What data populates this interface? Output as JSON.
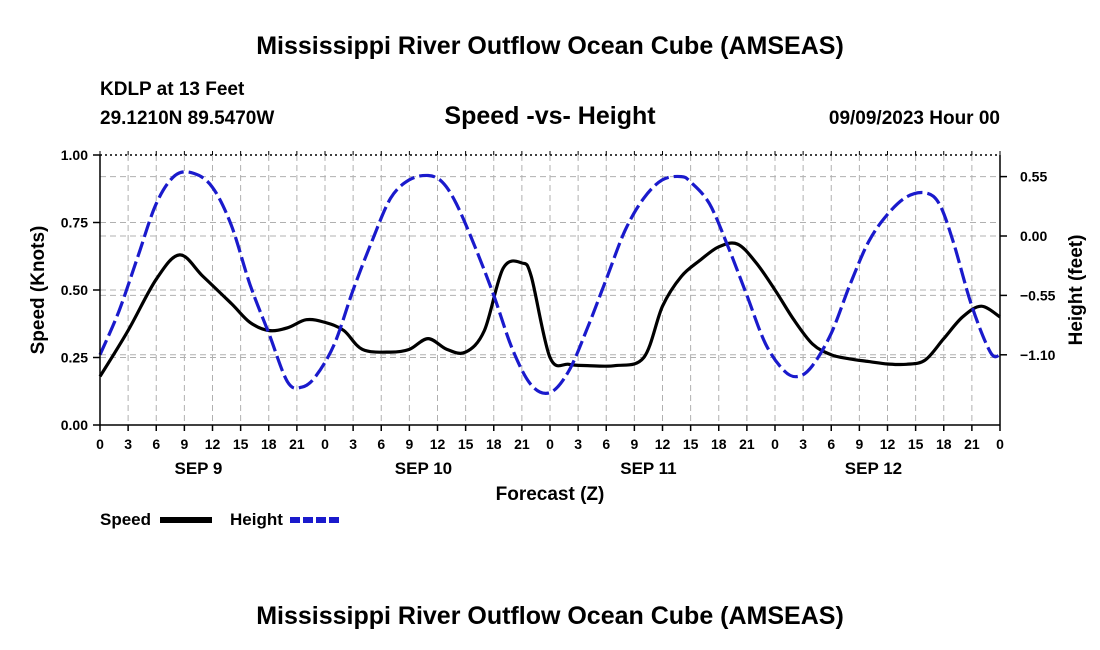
{
  "page": {
    "title": "Mississippi River Outflow Ocean Cube (AMSEAS)",
    "footer_title": "Mississippi River Outflow Ocean Cube (AMSEAS)",
    "station": "KDLP at 13 Feet",
    "coords": "29.1210N  89.5470W",
    "chart_title": "Speed -vs- Height",
    "datetime": "09/09/2023 Hour 00"
  },
  "chart_data": {
    "type": "line",
    "title": "Speed -vs- Height",
    "xlabel": "Forecast (Z)",
    "ylabel_left": "Speed (Knots)",
    "ylabel_right": "Height (feet)",
    "x_hours_range": [
      0,
      96
    ],
    "x_tick_labels": [
      "0",
      "3",
      "6",
      "9",
      "12",
      "15",
      "18",
      "21",
      "0",
      "3",
      "6",
      "9",
      "12",
      "15",
      "18",
      "21",
      "0",
      "3",
      "6",
      "9",
      "12",
      "15",
      "18",
      "21",
      "0",
      "3",
      "6",
      "9",
      "12",
      "15",
      "18",
      "21",
      "0"
    ],
    "day_labels": [
      {
        "label": "SEP 9",
        "hour": 10.5
      },
      {
        "label": "SEP 10",
        "hour": 34.5
      },
      {
        "label": "SEP 11",
        "hour": 58.5
      },
      {
        "label": "SEP 12",
        "hour": 82.5
      }
    ],
    "ylim_left": [
      0,
      1
    ],
    "y_ticks_left": [
      {
        "value": 0,
        "label": "0.00"
      },
      {
        "value": 0.25,
        "label": "0.25"
      },
      {
        "value": 0.5,
        "label": "0.50"
      },
      {
        "value": 0.75,
        "label": "0.75"
      },
      {
        "value": 1,
        "label": "1.00"
      }
    ],
    "ylim_right": [
      -1.75,
      0.75
    ],
    "y_ticks_right": [
      {
        "value": 0.55,
        "label": "0.55"
      },
      {
        "value": 0,
        "label": "0.00"
      },
      {
        "value": -0.55,
        "label": "−0.55"
      },
      {
        "value": -1.1,
        "label": "−1.10"
      }
    ],
    "grid": true,
    "series": [
      {
        "name": "Speed",
        "axis": "left",
        "color": "#000000",
        "style": "solid",
        "x": [
          0,
          3,
          6,
          8.5,
          11,
          14,
          16,
          18,
          20,
          22,
          24,
          26,
          28,
          31,
          33,
          35,
          37,
          39,
          41,
          43,
          45,
          46,
          48,
          50,
          52,
          55,
          58,
          60,
          62,
          64,
          66,
          68,
          70,
          72,
          74,
          76,
          78,
          80,
          82,
          84,
          86,
          88,
          90,
          92,
          94,
          96
        ],
        "values": [
          0.18,
          0.35,
          0.54,
          0.63,
          0.55,
          0.45,
          0.38,
          0.35,
          0.36,
          0.39,
          0.38,
          0.35,
          0.28,
          0.27,
          0.28,
          0.32,
          0.28,
          0.27,
          0.35,
          0.58,
          0.6,
          0.55,
          0.25,
          0.225,
          0.22,
          0.22,
          0.25,
          0.44,
          0.55,
          0.61,
          0.66,
          0.67,
          0.6,
          0.5,
          0.39,
          0.3,
          0.26,
          0.245,
          0.235,
          0.226,
          0.225,
          0.24,
          0.32,
          0.4,
          0.44,
          0.4
        ]
      },
      {
        "name": "Height",
        "axis": "right",
        "color": "#1a1acc",
        "style": "dashed",
        "x": [
          0,
          2,
          4,
          6,
          8,
          10,
          12,
          14,
          16,
          18,
          20,
          21.5,
          23,
          25,
          27,
          29,
          31,
          33,
          35,
          36.5,
          38,
          40,
          42,
          44,
          46,
          48,
          50,
          52,
          54,
          56,
          58,
          60,
          62,
          63,
          65,
          67,
          69,
          71,
          73,
          74.5,
          76,
          78,
          80,
          82,
          84,
          86,
          88,
          89.5,
          91,
          93,
          95,
          96
        ],
        "values": [
          -1.1,
          -0.7,
          -0.2,
          0.3,
          0.56,
          0.58,
          0.45,
          0.1,
          -0.45,
          -0.9,
          -1.35,
          -1.4,
          -1.3,
          -1.0,
          -0.5,
          -0.05,
          0.35,
          0.52,
          0.56,
          0.5,
          0.3,
          -0.1,
          -0.55,
          -1.05,
          -1.38,
          -1.45,
          -1.25,
          -0.85,
          -0.4,
          0.05,
          0.35,
          0.52,
          0.55,
          0.5,
          0.3,
          -0.1,
          -0.55,
          -1.0,
          -1.25,
          -1.3,
          -1.2,
          -0.9,
          -0.45,
          -0.05,
          0.2,
          0.36,
          0.4,
          0.3,
          -0.05,
          -0.65,
          -1.08,
          -1.1
        ]
      }
    ],
    "legend": [
      {
        "label": "Speed",
        "color": "#000000",
        "style": "solid"
      },
      {
        "label": "Height",
        "color": "#1a1acc",
        "style": "dashed"
      }
    ],
    "legend_position": "bottom-left"
  }
}
